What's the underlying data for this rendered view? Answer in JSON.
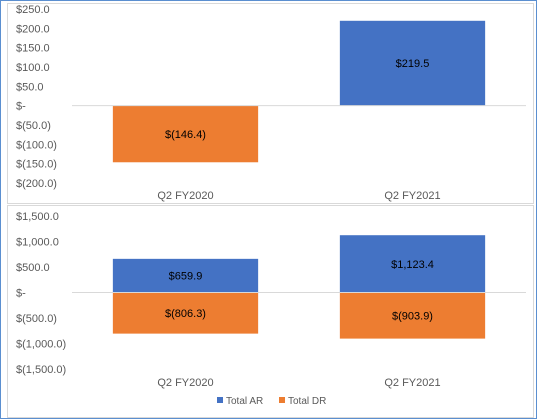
{
  "colors": {
    "total_ar": "#4472C4",
    "total_dr": "#ED7D31",
    "axis": "#D9D9D9",
    "text": "#595959"
  },
  "chart_data": [
    {
      "type": "bar",
      "categories": [
        "Q2 FY2020",
        "Q2 FY2021"
      ],
      "series": [
        {
          "values": [
            -146.4,
            219.5
          ],
          "colors": [
            "#ED7D31",
            "#4472C4"
          ],
          "labels": [
            "$(146.4)",
            "$219.5"
          ]
        }
      ],
      "ylim": [
        -200,
        250
      ],
      "yticks": [
        250,
        200,
        150,
        100,
        50,
        0,
        -50,
        -100,
        -150,
        -200
      ],
      "ytick_labels": [
        "$250.0",
        "$200.0",
        "$150.0",
        "$100.0",
        "$50.0",
        "$-",
        "$(50.0)",
        "$(100.0)",
        "$(150.0)",
        "$(200.0)"
      ],
      "grid": false,
      "legend": "none"
    },
    {
      "type": "bar",
      "stacked": true,
      "categories": [
        "Q2 FY2020",
        "Q2 FY2021"
      ],
      "series": [
        {
          "name": "Total AR",
          "color": "#4472C4",
          "values": [
            659.9,
            1123.4
          ],
          "labels": [
            "$659.9",
            "$1,123.4"
          ]
        },
        {
          "name": "Total DR",
          "color": "#ED7D31",
          "values": [
            -806.3,
            -903.9
          ],
          "labels": [
            "$(806.3)",
            "$(903.9)"
          ]
        }
      ],
      "ylim": [
        -1500,
        1500
      ],
      "yticks": [
        1500,
        1000,
        500,
        0,
        -500,
        -1000,
        -1500
      ],
      "ytick_labels": [
        "$1,500.0",
        "$1,000.0",
        "$500.0",
        "$-",
        "$(500.0)",
        "$(1,000.0)",
        "$(1,500.0)"
      ],
      "grid": false,
      "legend": "bottom"
    }
  ]
}
